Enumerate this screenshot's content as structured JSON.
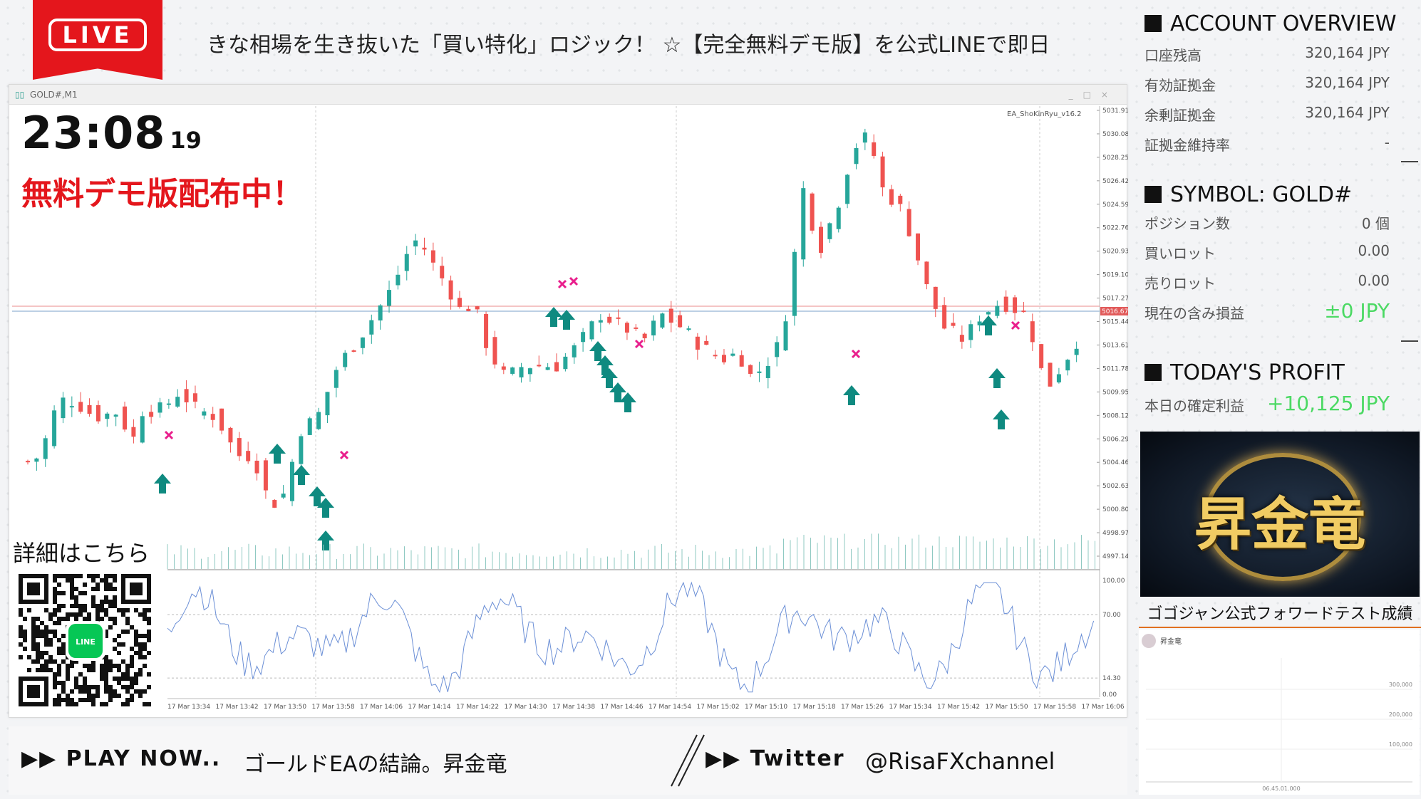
{
  "live": {
    "label": "LIVE"
  },
  "ticker": {
    "text": "きな相場を生き抜いた「買い特化」ロジック！ ☆【完全無料デモ版】を公式LINEで即日"
  },
  "chart_window": {
    "title": "GOLD#,M1",
    "ea_label": "EA_ShoKinRyu_v16.2",
    "price_ticks": [
      "5031.91",
      "5030.08",
      "5028.25",
      "5026.42",
      "5024.59",
      "5022.76",
      "5020.93",
      "5019.10",
      "5017.27",
      "5015.44",
      "5013.61",
      "5011.78",
      "5009.95",
      "5008.12",
      "5006.29",
      "5004.46",
      "5002.63",
      "5000.80",
      "4998.97",
      "4997.14"
    ],
    "current_price": "5016.67",
    "osc_ticks": [
      "100.00",
      "70.00",
      "14.30",
      "0.00"
    ],
    "time_ticks": [
      "17 Mar 13:34",
      "17 Mar 13:42",
      "17 Mar 13:50",
      "17 Mar 13:58",
      "17 Mar 14:06",
      "17 Mar 14:14",
      "17 Mar 14:22",
      "17 Mar 14:30",
      "17 Mar 14:38",
      "17 Mar 14:46",
      "17 Mar 14:54",
      "17 Mar 15:02",
      "17 Mar 15:10",
      "17 Mar 15:18",
      "17 Mar 15:26",
      "17 Mar 15:34",
      "17 Mar 15:42",
      "17 Mar 15:50",
      "17 Mar 15:58",
      "17 Mar 16:06"
    ],
    "colors": {
      "bull": "#26a69a",
      "bear": "#ef5350",
      "buy_arrow": "#0f8a80",
      "exit_mark": "#e91e8c",
      "osc": "#6b8fd6"
    }
  },
  "clock": {
    "hm": "23:08",
    "sec": "19"
  },
  "demo_text": "無料デモ版配布中！",
  "qr": {
    "label": "詳細はこちら",
    "badge": "LINE"
  },
  "account": {
    "title": "ACCOUNT OVERVIEW",
    "rows": [
      {
        "k": "口座残高",
        "v": "320,164 JPY"
      },
      {
        "k": "有効証拠金",
        "v": "320,164 JPY"
      },
      {
        "k": "余剰証拠金",
        "v": "320,164 JPY"
      },
      {
        "k": "証拠金維持率",
        "v": "-"
      }
    ]
  },
  "symbol": {
    "title": "SYMBOL: GOLD#",
    "rows": [
      {
        "k": "ポジション数",
        "v": "0 個"
      },
      {
        "k": "買いロット",
        "v": "0.00"
      },
      {
        "k": "売りロット",
        "v": "0.00"
      },
      {
        "k": "現在の含み損益",
        "v": "±0 JPY"
      }
    ]
  },
  "profit": {
    "title": "TODAY'S PROFIT",
    "k": "本日の確定利益",
    "v": "+10,125 JPY"
  },
  "promo": {
    "text": "昇金竜"
  },
  "forward": {
    "label": "ゴゴジャン公式フォワードテスト成績",
    "account_name": "昇金竜",
    "y_ticks": [
      "300,000",
      "200,000",
      "100,000"
    ],
    "x_tick": "06.45.01.000"
  },
  "bottom": {
    "play": "▶▶ PLAY NOW..",
    "play_sub": "ゴールドEAの結論。昇金竜",
    "twitter": "▶▶ Twitter",
    "handle": "@RisaFXchannel"
  }
}
